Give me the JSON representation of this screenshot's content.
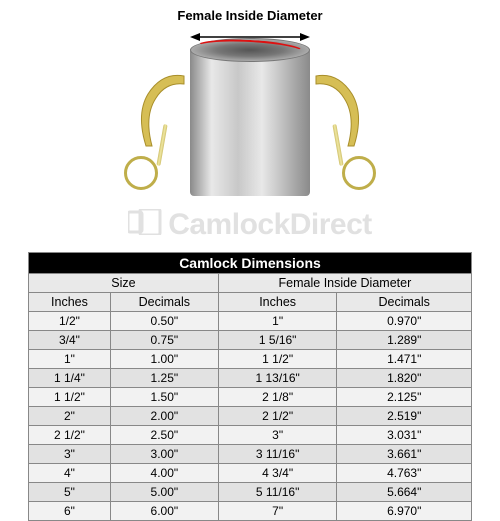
{
  "diagram": {
    "label": "Female Inside Diameter",
    "arc_color": "#d11a1a",
    "handle_color": "#c9a93a",
    "body_gradient": [
      "#8a8a8a",
      "#e8e8e8",
      "#c8c8c8"
    ]
  },
  "watermark": {
    "text": "CamlockDirect",
    "color": "#c9c9c9"
  },
  "table": {
    "title": "Camlock Dimensions",
    "group_headers": [
      "Size",
      "Female Inside Diameter"
    ],
    "sub_headers": [
      "Inches",
      "Decimals",
      "Inches",
      "Decimals"
    ],
    "header_bg": "#000000",
    "header_color": "#ffffff",
    "subheader_bg": "#e9e9e9",
    "row_bg_odd": "#f2f2f2",
    "row_bg_even": "#e2e2e2",
    "border_color": "#888888",
    "rows": [
      [
        "1/2\"",
        "0.50\"",
        "1\"",
        "0.970\""
      ],
      [
        "3/4\"",
        "0.75\"",
        "1 5/16\"",
        "1.289\""
      ],
      [
        "1\"",
        "1.00\"",
        "1 1/2\"",
        "1.471\""
      ],
      [
        "1 1/4\"",
        "1.25\"",
        "1 13/16\"",
        "1.820\""
      ],
      [
        "1 1/2\"",
        "1.50\"",
        "2 1/8\"",
        "2.125\""
      ],
      [
        "2\"",
        "2.00\"",
        "2 1/2\"",
        "2.519\""
      ],
      [
        "2 1/2\"",
        "2.50\"",
        "3\"",
        "3.031\""
      ],
      [
        "3\"",
        "3.00\"",
        "3 11/16\"",
        "3.661\""
      ],
      [
        "4\"",
        "4.00\"",
        "4 3/4\"",
        "4.763\""
      ],
      [
        "5\"",
        "5.00\"",
        "5 11/16\"",
        "5.664\""
      ],
      [
        "6\"",
        "6.00\"",
        "7\"",
        "6.970\""
      ]
    ]
  }
}
